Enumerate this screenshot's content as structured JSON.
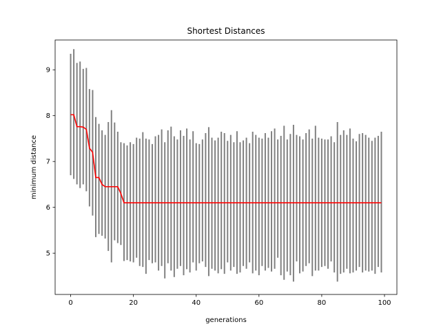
{
  "chart_data": {
    "type": "line",
    "title": "Shortest Distances",
    "xlabel": "generations",
    "ylabel": "minimum distance",
    "xlim": [
      -4.95,
      103.95
    ],
    "ylim": [
      4.1,
      9.65
    ],
    "xticks": [
      0,
      20,
      40,
      60,
      80,
      100
    ],
    "yticks": [
      5,
      6,
      7,
      8,
      9
    ],
    "grid": false,
    "colors": {
      "best_line": "#ff0000",
      "range_bars": "#808080"
    },
    "best": [
      8.02,
      8.02,
      7.76,
      7.76,
      7.75,
      7.7,
      7.29,
      7.2,
      6.65,
      6.65,
      6.5,
      6.45,
      6.45,
      6.45,
      6.45,
      6.45,
      6.3,
      6.1,
      6.1,
      6.1,
      6.1,
      6.1,
      6.1,
      6.1,
      6.1,
      6.1,
      6.1,
      6.1,
      6.1,
      6.1,
      6.1,
      6.1,
      6.1,
      6.1,
      6.1,
      6.1,
      6.1,
      6.1,
      6.1,
      6.1,
      6.1,
      6.1,
      6.1,
      6.1,
      6.1,
      6.1,
      6.1,
      6.1,
      6.1,
      6.1,
      6.1,
      6.1,
      6.1,
      6.1,
      6.1,
      6.1,
      6.1,
      6.1,
      6.1,
      6.1,
      6.1,
      6.1,
      6.1,
      6.1,
      6.1,
      6.1,
      6.1,
      6.1,
      6.1,
      6.1,
      6.1,
      6.1,
      6.1,
      6.1,
      6.1,
      6.1,
      6.1,
      6.1,
      6.1,
      6.1,
      6.1,
      6.1,
      6.1,
      6.1,
      6.1,
      6.1,
      6.1,
      6.1,
      6.1,
      6.1,
      6.1,
      6.1,
      6.1,
      6.1,
      6.1,
      6.1,
      6.1,
      6.1,
      6.1,
      6.1
    ],
    "low": [
      6.7,
      6.62,
      6.5,
      6.42,
      6.5,
      6.35,
      6.02,
      5.82,
      5.35,
      5.42,
      5.38,
      5.32,
      5.05,
      4.8,
      5.28,
      5.22,
      5.18,
      4.83,
      4.85,
      4.82,
      4.8,
      4.9,
      4.72,
      4.7,
      4.55,
      4.85,
      4.78,
      4.8,
      4.62,
      4.72,
      4.45,
      4.78,
      4.62,
      4.48,
      4.66,
      4.72,
      4.52,
      4.65,
      4.58,
      4.8,
      4.62,
      4.78,
      4.82,
      4.7,
      4.5,
      4.66,
      4.62,
      4.56,
      4.65,
      4.55,
      4.8,
      4.62,
      4.7,
      4.55,
      4.58,
      4.72,
      4.66,
      4.8,
      4.56,
      4.62,
      4.52,
      4.72,
      4.62,
      4.68,
      4.6,
      4.66,
      4.9,
      4.52,
      4.42,
      4.6,
      4.52,
      4.38,
      4.82,
      4.56,
      4.6,
      4.72,
      4.78,
      4.5,
      4.62,
      4.62,
      4.7,
      4.72,
      4.66,
      4.82,
      4.58,
      4.38,
      4.55,
      4.58,
      4.66,
      4.56,
      4.58,
      4.62,
      4.7,
      4.58,
      4.62,
      4.6,
      4.62,
      4.55,
      4.7,
      4.58
    ],
    "high": [
      9.35,
      9.45,
      9.15,
      9.18,
      9.02,
      9.04,
      8.58,
      8.56,
      7.97,
      7.82,
      7.68,
      7.58,
      7.86,
      8.12,
      7.85,
      7.65,
      7.42,
      7.4,
      7.35,
      7.42,
      7.38,
      7.52,
      7.5,
      7.64,
      7.5,
      7.48,
      7.38,
      7.55,
      7.58,
      7.7,
      7.42,
      7.68,
      7.76,
      7.55,
      7.48,
      7.68,
      7.56,
      7.72,
      7.48,
      7.66,
      7.4,
      7.38,
      7.48,
      7.62,
      7.75,
      7.52,
      7.46,
      7.52,
      7.65,
      7.62,
      7.45,
      7.58,
      7.42,
      7.66,
      7.42,
      7.46,
      7.52,
      7.4,
      7.65,
      7.58,
      7.52,
      7.5,
      7.62,
      7.52,
      7.66,
      7.72,
      7.48,
      7.56,
      7.78,
      7.48,
      7.6,
      7.8,
      7.58,
      7.55,
      7.48,
      7.62,
      7.7,
      7.5,
      7.78,
      7.52,
      7.5,
      7.48,
      7.48,
      7.55,
      7.42,
      7.86,
      7.58,
      7.68,
      7.58,
      7.72,
      7.5,
      7.44,
      7.6,
      7.62,
      7.58,
      7.52,
      7.45,
      7.52,
      7.56,
      7.65
    ]
  }
}
